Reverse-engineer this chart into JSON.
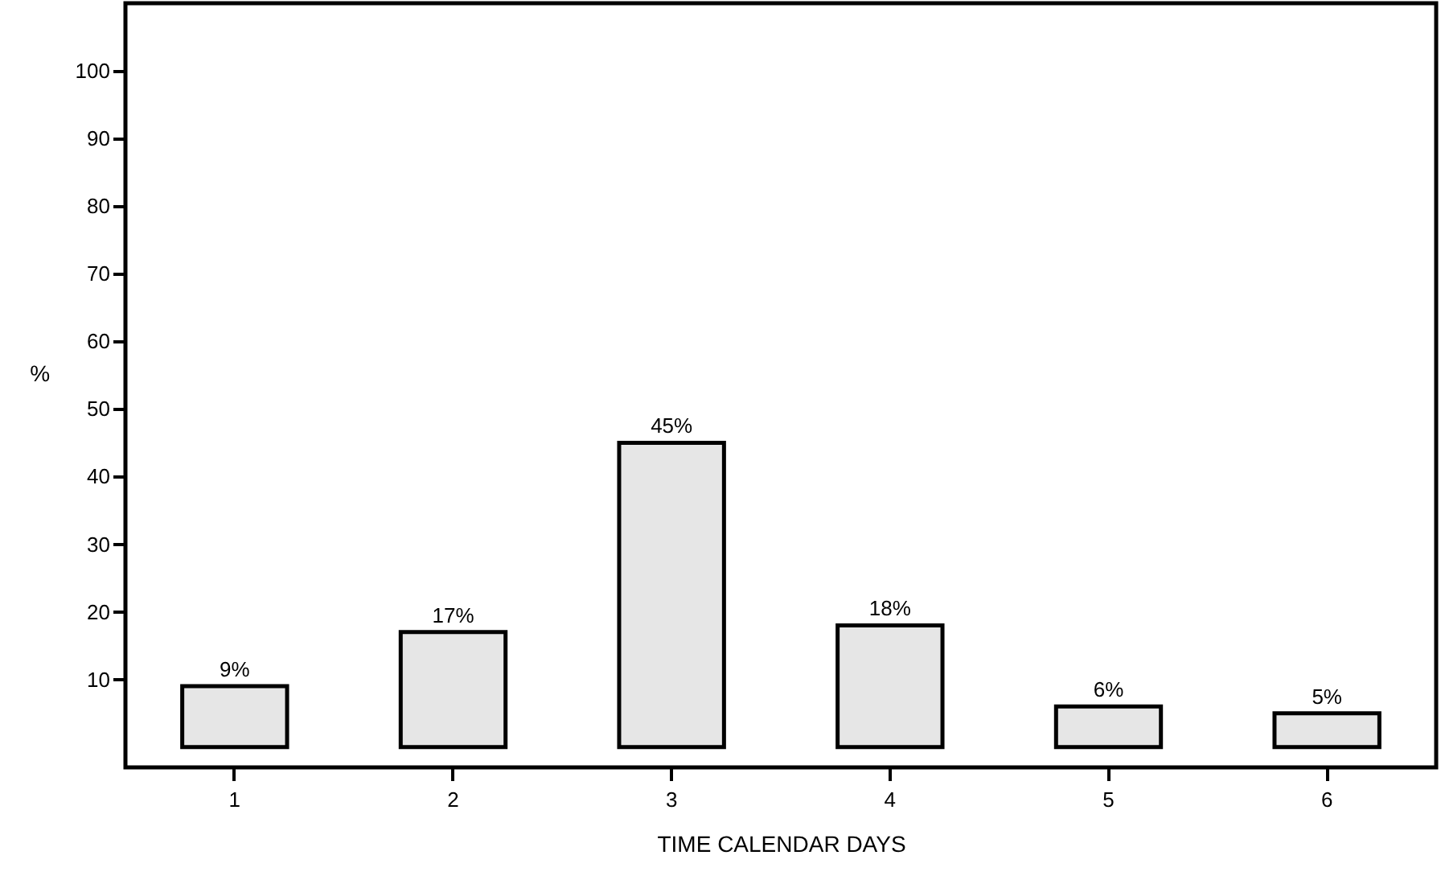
{
  "chart_data": {
    "type": "bar",
    "xlabel": "TIME CALENDAR DAYS",
    "ylabel": "%",
    "categories": [
      "1",
      "2",
      "3",
      "4",
      "5",
      "6"
    ],
    "values": [
      9,
      17,
      45,
      18,
      6,
      5
    ],
    "value_labels": [
      "9%",
      "17%",
      "45%",
      "18%",
      "6%",
      "5%"
    ],
    "color": "#e6e6e6",
    "ylim": [
      -3,
      110
    ],
    "yticks": [
      10,
      20,
      30,
      40,
      50,
      60,
      70,
      80,
      90,
      100
    ],
    "grid": false
  }
}
